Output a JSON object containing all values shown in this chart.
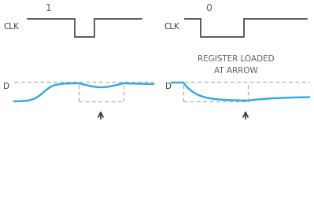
{
  "title_1": "1",
  "title_2": "0",
  "label_clk": "CLK",
  "label_d": "D",
  "register_text": "REGISTER LOADED\nAT ARROW",
  "bg_color": "#ffffff",
  "clk_color": "#404040",
  "signal_color": "#29aae1",
  "dashed_color": "#aaaaaa",
  "arrow_color": "#404040",
  "text_color": "#606060",
  "fig_width": 3.99,
  "fig_height": 2.62,
  "dpi": 100
}
